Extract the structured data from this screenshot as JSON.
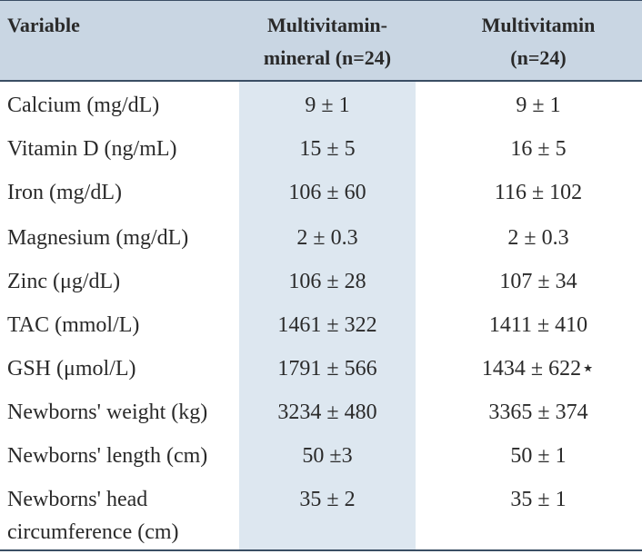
{
  "headers": {
    "variable": "Variable",
    "col1_line1": "Multivitamin-",
    "col1_line2": "mineral (n=24)",
    "col2_line1": "Multivitamin",
    "col2_line2": "(n=24)"
  },
  "rows": [
    {
      "variable": "Calcium (mg/dL)",
      "col1": "9 ± 1",
      "col2": "9 ± 1"
    },
    {
      "variable": "Vitamin D (ng/mL)",
      "col1": "15 ± 5",
      "col2": "16 ± 5"
    },
    {
      "variable": "Iron (mg/dL)",
      "col1": "106 ± 60",
      "col2": "116 ± 102"
    },
    {
      "variable": "Magnesium (mg/dL)",
      "col1": "2 ± 0.3",
      "col2": "2 ± 0.3"
    },
    {
      "variable": "Zinc (μg/dL)",
      "col1": "106 ± 28",
      "col2": "107 ± 34"
    },
    {
      "variable": "TAC (mmol/L)",
      "col1": "1461 ± 322",
      "col2": "1411 ± 410"
    },
    {
      "variable": "GSH (μmol/L)",
      "col1": "1791 ± 566",
      "col2": "1434 ± 622⋆"
    },
    {
      "variable": "Newborns' weight (kg)",
      "col1": "3234 ± 480",
      "col2": "3365 ± 374"
    },
    {
      "variable": "Newborns' length (cm)",
      "col1": "50 ±3",
      "col2": "50 ± 1"
    },
    {
      "variable_line1": "Newborns' head",
      "variable_line2": "circumference (cm)",
      "col1": "35 ± 2",
      "col2": "35 ± 1"
    }
  ]
}
